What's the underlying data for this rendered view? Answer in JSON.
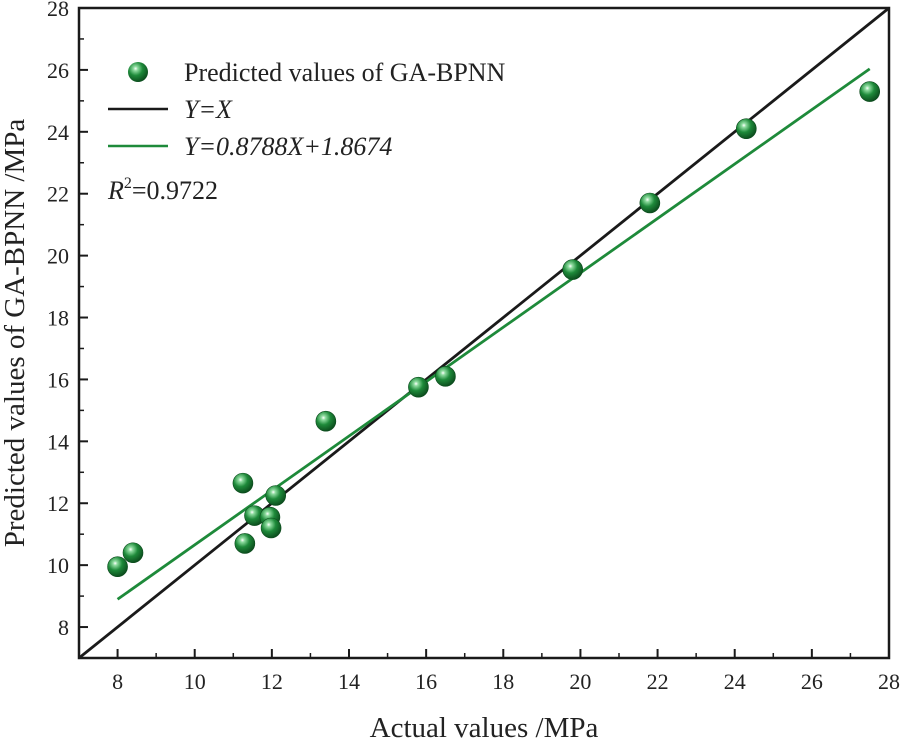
{
  "chart_data": {
    "type": "scatter",
    "title": "",
    "xlabel": "Actual values /MPa",
    "ylabel": "Predicted values of GA-BPNN /MPa",
    "xlim": [
      7,
      28
    ],
    "ylim": [
      7,
      28
    ],
    "xticks": [
      8,
      10,
      12,
      14,
      16,
      18,
      20,
      22,
      24,
      26,
      28
    ],
    "yticks": [
      8,
      10,
      12,
      14,
      16,
      18,
      20,
      22,
      24,
      26,
      28
    ],
    "grid": false,
    "legend_position": "top-left",
    "series": [
      {
        "name": "Predicted values of GA-BPNN",
        "kind": "scatter",
        "color": "#1e8a3a",
        "points": [
          {
            "x": 8.0,
            "y": 9.95
          },
          {
            "x": 8.4,
            "y": 10.4
          },
          {
            "x": 11.25,
            "y": 12.65
          },
          {
            "x": 11.3,
            "y": 10.7
          },
          {
            "x": 11.55,
            "y": 11.6
          },
          {
            "x": 11.95,
            "y": 11.55
          },
          {
            "x": 11.98,
            "y": 11.2
          },
          {
            "x": 12.1,
            "y": 12.25
          },
          {
            "x": 13.4,
            "y": 14.65
          },
          {
            "x": 15.8,
            "y": 15.75
          },
          {
            "x": 16.5,
            "y": 16.1
          },
          {
            "x": 19.8,
            "y": 19.55
          },
          {
            "x": 21.8,
            "y": 21.7
          },
          {
            "x": 24.3,
            "y": 24.1
          },
          {
            "x": 27.5,
            "y": 25.3
          }
        ]
      },
      {
        "name": "Y=X",
        "kind": "line",
        "color": "#1a1a1a",
        "slope": 1,
        "intercept": 0,
        "x_range": [
          7,
          28
        ]
      },
      {
        "name": "Y=0.8788X+1.8674",
        "kind": "line",
        "color": "#1e8a3a",
        "slope": 0.8788,
        "intercept": 1.8674,
        "x_range": [
          8,
          27.5
        ]
      }
    ],
    "annotations": {
      "r2_symbol": "R",
      "r2_exponent": "2",
      "r2_value": "=0.9722"
    }
  },
  "colors": {
    "axis": "#1a1a1a",
    "scatter": "#1e8a3a",
    "fit_line": "#1e8a3a",
    "identity_line": "#1a1a1a"
  }
}
